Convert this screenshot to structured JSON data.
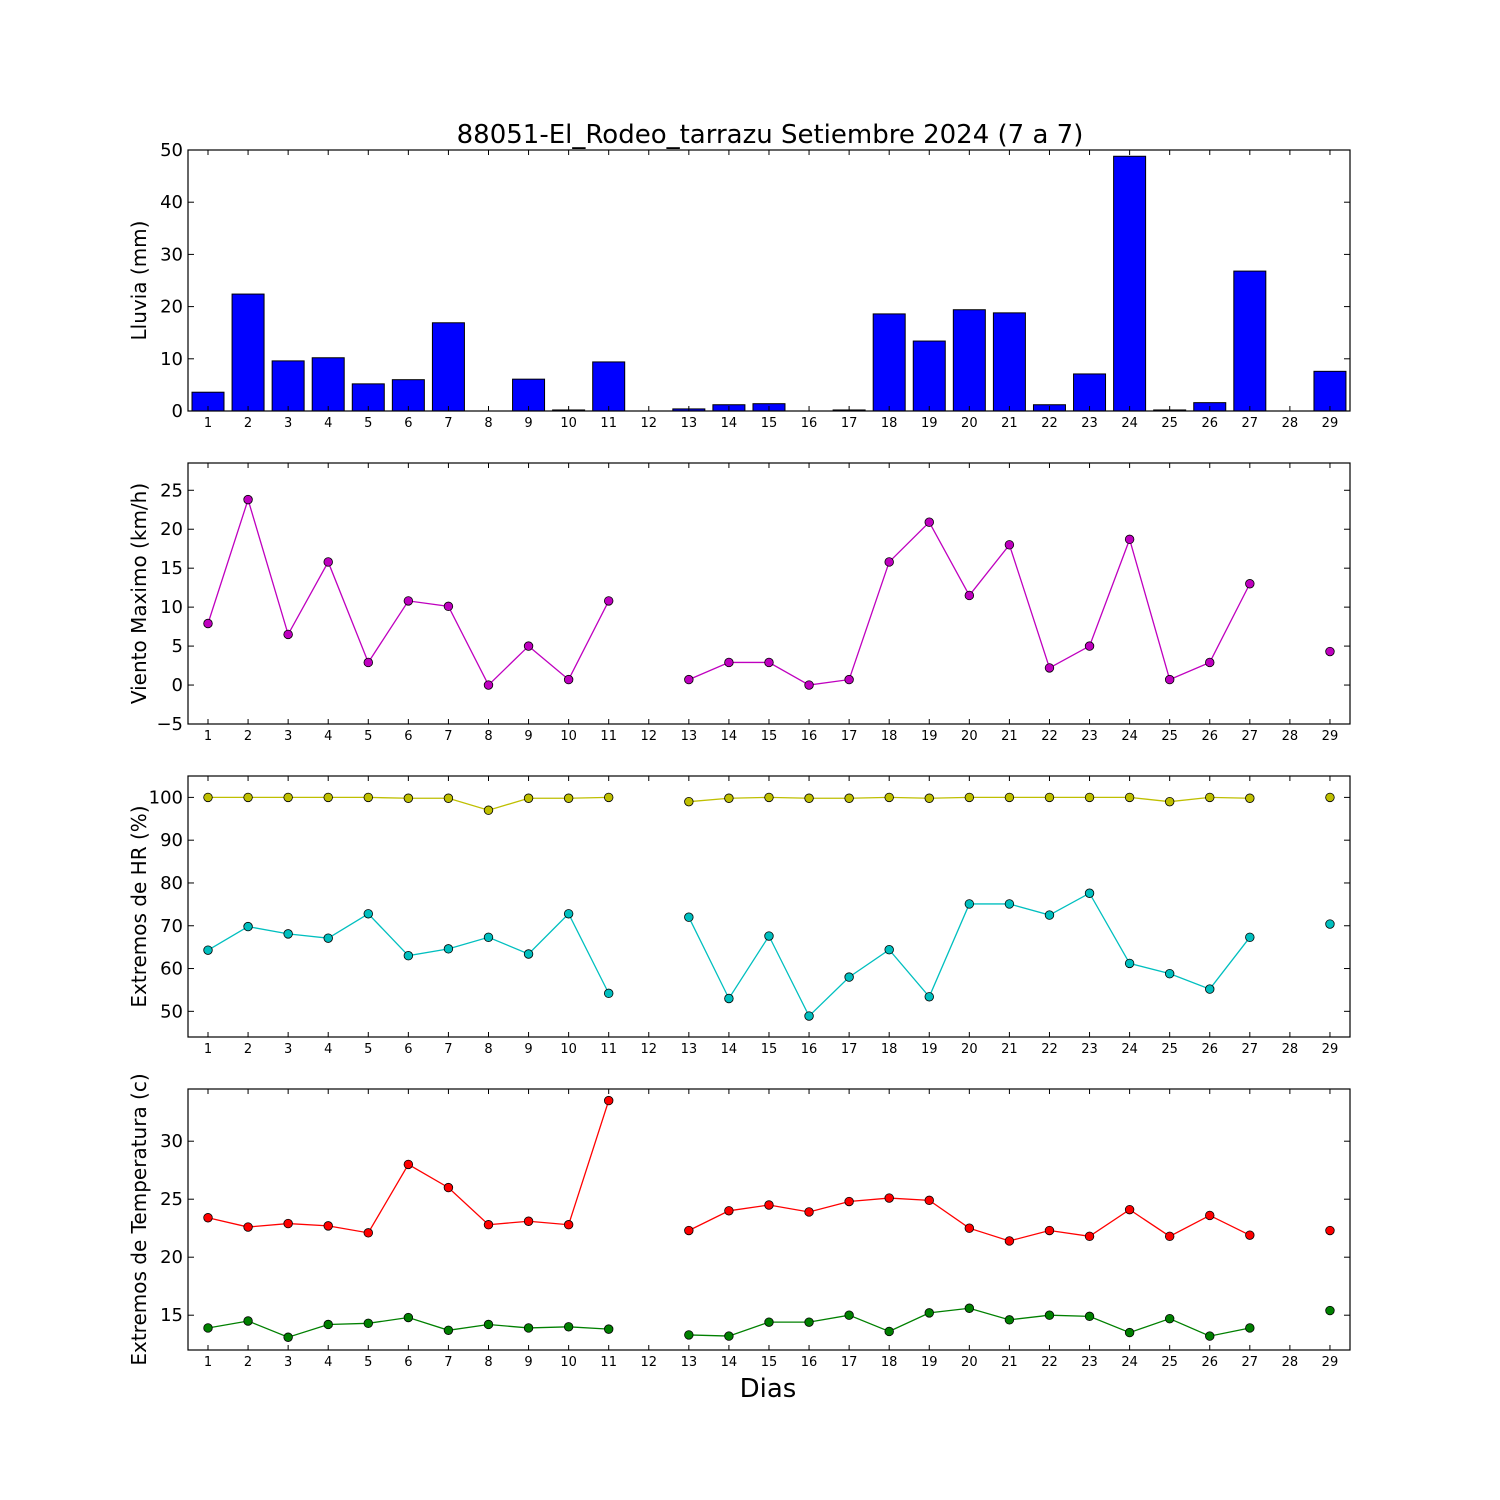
{
  "title": "88051-El_Rodeo_tarrazu Setiembre 2024  (7 a 7)",
  "xlabel": "Dias",
  "chart_data": [
    {
      "type": "bar",
      "ylabel": "Lluvia (mm)",
      "ylim": [
        0,
        50
      ],
      "yticks": [
        0,
        10,
        20,
        30,
        40,
        50
      ],
      "categories": [
        1,
        2,
        3,
        4,
        5,
        6,
        7,
        8,
        9,
        10,
        11,
        12,
        13,
        14,
        15,
        16,
        17,
        18,
        19,
        20,
        21,
        22,
        23,
        24,
        25,
        26,
        27,
        28,
        29
      ],
      "series": [
        {
          "color": "#0000ff",
          "values": [
            3.6,
            22.4,
            9.6,
            10.2,
            5.2,
            6.0,
            16.9,
            0,
            6.1,
            0.2,
            9.4,
            0,
            0.4,
            1.2,
            1.4,
            0,
            0.2,
            18.6,
            13.4,
            19.4,
            18.8,
            1.2,
            7.1,
            48.8,
            0.2,
            1.6,
            26.8,
            0,
            7.6
          ]
        }
      ]
    },
    {
      "type": "line",
      "ylabel": "Viento Maximo (km/h)",
      "ylim": [
        -5,
        28.5
      ],
      "yticks": [
        -5,
        0,
        5,
        10,
        15,
        20,
        25
      ],
      "categories": [
        1,
        2,
        3,
        4,
        5,
        6,
        7,
        8,
        9,
        10,
        11,
        12,
        13,
        14,
        15,
        16,
        17,
        18,
        19,
        20,
        21,
        22,
        23,
        24,
        25,
        26,
        27,
        28,
        29
      ],
      "series": [
        {
          "color": "#bf00bf",
          "values": [
            7.9,
            23.8,
            6.5,
            15.8,
            2.9,
            10.8,
            10.1,
            0,
            5.0,
            0.7,
            10.8,
            null,
            0.7,
            2.9,
            2.9,
            0,
            0.7,
            15.8,
            20.9,
            11.5,
            18.0,
            2.2,
            5.0,
            18.7,
            0.7,
            2.9,
            13.0,
            null,
            4.3
          ]
        }
      ]
    },
    {
      "type": "line",
      "ylabel": "Extremos de HR (%)",
      "ylim": [
        44,
        105
      ],
      "yticks": [
        50,
        60,
        70,
        80,
        90,
        100
      ],
      "categories": [
        1,
        2,
        3,
        4,
        5,
        6,
        7,
        8,
        9,
        10,
        11,
        12,
        13,
        14,
        15,
        16,
        17,
        18,
        19,
        20,
        21,
        22,
        23,
        24,
        25,
        26,
        27,
        28,
        29
      ],
      "series": [
        {
          "color": "#bfbf00",
          "values": [
            100,
            100,
            100,
            100,
            100,
            99.8,
            99.8,
            97,
            99.8,
            99.8,
            100,
            null,
            99,
            99.8,
            100,
            99.8,
            99.8,
            100,
            99.8,
            100,
            100,
            100,
            100,
            100,
            99,
            100,
            99.8,
            null,
            100
          ]
        },
        {
          "color": "#00bfbf",
          "values": [
            64.3,
            69.8,
            68.1,
            67.1,
            72.8,
            63,
            64.6,
            67.3,
            63.4,
            72.8,
            54.2,
            null,
            72,
            53,
            67.6,
            48.9,
            58,
            64.4,
            53.4,
            75.1,
            75.1,
            72.5,
            77.6,
            61.2,
            58.8,
            55.2,
            67.3,
            null,
            70.4
          ]
        }
      ]
    },
    {
      "type": "line",
      "ylabel": "Extremos de Temperatura (c)",
      "ylim": [
        12.0,
        34.5
      ],
      "yticks": [
        15,
        20,
        25,
        30
      ],
      "categories": [
        1,
        2,
        3,
        4,
        5,
        6,
        7,
        8,
        9,
        10,
        11,
        12,
        13,
        14,
        15,
        16,
        17,
        18,
        19,
        20,
        21,
        22,
        23,
        24,
        25,
        26,
        27,
        28,
        29
      ],
      "series": [
        {
          "color": "#ff0000",
          "values": [
            23.4,
            22.6,
            22.9,
            22.7,
            22.1,
            28.0,
            26.0,
            22.8,
            23.1,
            22.8,
            33.5,
            null,
            22.3,
            24.0,
            24.5,
            23.9,
            24.8,
            25.1,
            24.9,
            22.5,
            21.4,
            22.3,
            21.8,
            24.1,
            21.8,
            23.6,
            21.9,
            null,
            22.3
          ]
        },
        {
          "color": "#008000",
          "values": [
            13.9,
            14.5,
            13.1,
            14.2,
            14.3,
            14.8,
            13.7,
            14.2,
            13.9,
            14.0,
            13.8,
            null,
            13.3,
            13.2,
            14.4,
            14.4,
            15.0,
            13.6,
            15.2,
            15.6,
            14.6,
            15.0,
            14.9,
            13.5,
            14.7,
            13.2,
            13.9,
            null,
            15.4
          ]
        }
      ]
    }
  ]
}
